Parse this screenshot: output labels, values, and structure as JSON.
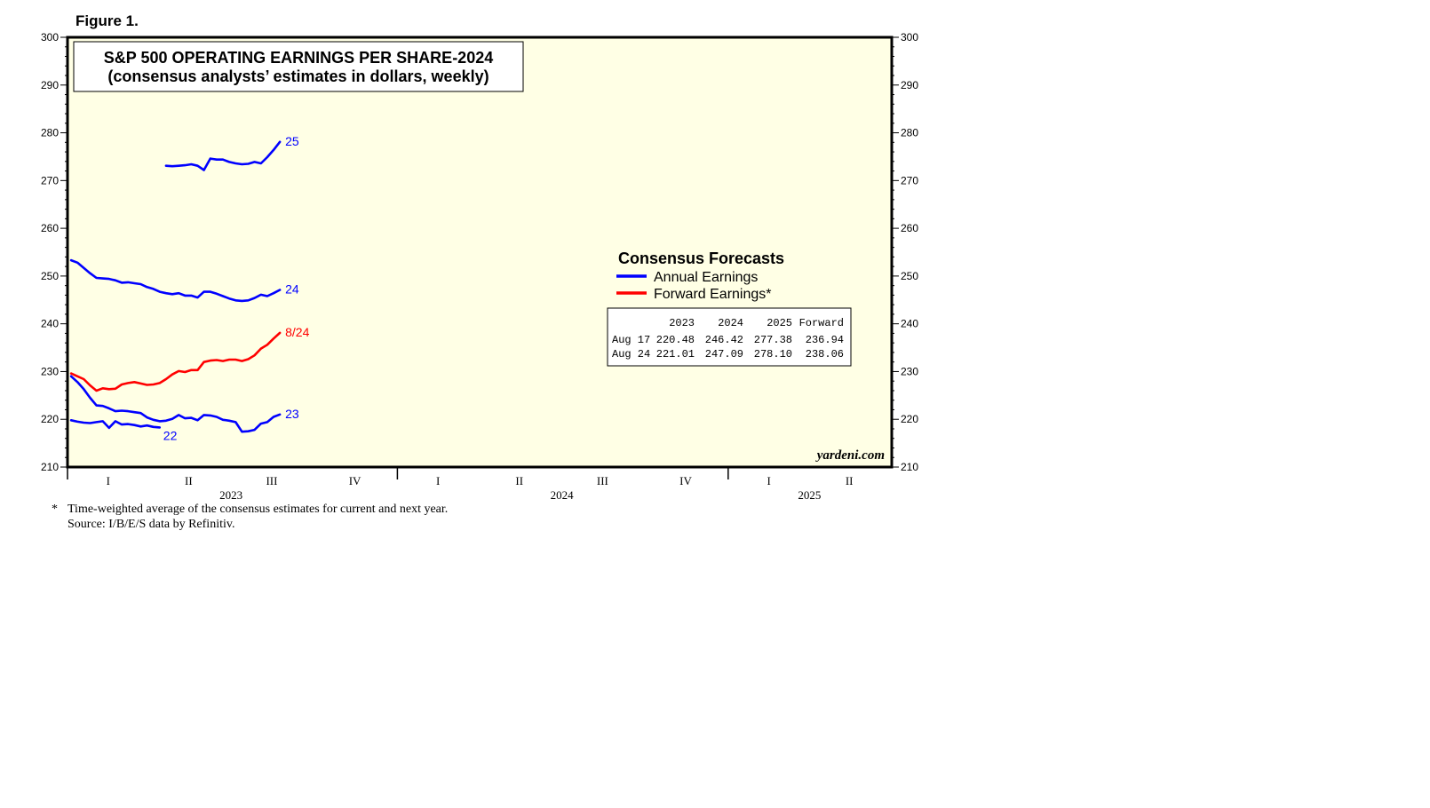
{
  "figure_label": "Figure 1.",
  "title_box": {
    "line1": "S&P 500 OPERATING EARNINGS PER SHARE-2024",
    "line2": "(consensus analysts’ estimates in dollars, weekly)"
  },
  "legend": {
    "heading": "Consensus Forecasts",
    "annual_label": "Annual Earnings",
    "forward_label": "Forward Earnings*"
  },
  "table": {
    "headers": [
      "2023",
      "2024",
      "2025",
      "Forward"
    ],
    "rows": [
      {
        "label": "Aug 17",
        "values": [
          "220.48",
          "246.42",
          "277.38",
          "236.94"
        ]
      },
      {
        "label": "Aug 24",
        "values": [
          "221.01",
          "247.09",
          "278.10",
          "238.06"
        ]
      }
    ]
  },
  "watermark": "yardeni.com",
  "footnote": {
    "star": "*",
    "line1": "Time-weighted average of the consensus estimates for current and next year.",
    "line2": "Source: I/B/E/S data by Refinitiv."
  },
  "colors": {
    "plot_background": "#ffffe5",
    "annual": "#0000ff",
    "forward": "#ff0000",
    "frame": "#000000"
  },
  "chart_data": {
    "type": "line",
    "title": "S&P 500 OPERATING EARNINGS PER SHARE-2024",
    "subtitle": "(consensus analysts’ estimates in dollars, weekly)",
    "ylim": [
      210,
      300
    ],
    "y_ticks": [
      "300",
      "290",
      "280",
      "270",
      "260",
      "250",
      "240",
      "230",
      "220",
      "210"
    ],
    "x_range": [
      "2023-01-01",
      "2025-07-01"
    ],
    "quarter_labels": [
      {
        "label": "I",
        "date": "2023-02-15"
      },
      {
        "label": "II",
        "date": "2023-05-15"
      },
      {
        "label": "III",
        "date": "2023-08-15"
      },
      {
        "label": "IV",
        "date": "2023-11-15"
      },
      {
        "label": "I",
        "date": "2024-02-15"
      },
      {
        "label": "II",
        "date": "2024-05-15"
      },
      {
        "label": "III",
        "date": "2024-08-15"
      },
      {
        "label": "IV",
        "date": "2024-11-15"
      },
      {
        "label": "I",
        "date": "2025-02-15"
      },
      {
        "label": "II",
        "date": "2025-05-15"
      }
    ],
    "year_labels": [
      {
        "label": "2023",
        "date": "2023-07-01"
      },
      {
        "label": "2024",
        "date": "2024-07-01"
      },
      {
        "label": "2025",
        "date": "2025-04-01"
      }
    ],
    "year_boundaries": [
      "2023-01-01",
      "2024-01-01",
      "2025-01-01"
    ],
    "series": [
      {
        "name": "22",
        "kind": "annual",
        "x": [
          "2023-01-05",
          "2023-01-12",
          "2023-01-19",
          "2023-01-26",
          "2023-02-02",
          "2023-02-09",
          "2023-02-16",
          "2023-02-23",
          "2023-03-02",
          "2023-03-09",
          "2023-03-16",
          "2023-03-23",
          "2023-03-30",
          "2023-04-06",
          "2023-04-13"
        ],
        "y": [
          219.8,
          219.5,
          219.3,
          219.2,
          219.4,
          219.6,
          218.2,
          219.6,
          218.9,
          219.0,
          218.8,
          218.5,
          218.7,
          218.4,
          218.3
        ]
      },
      {
        "name": "23",
        "kind": "annual",
        "x": [
          "2023-01-05",
          "2023-01-12",
          "2023-01-19",
          "2023-01-26",
          "2023-02-02",
          "2023-02-09",
          "2023-02-16",
          "2023-02-23",
          "2023-03-02",
          "2023-03-09",
          "2023-03-16",
          "2023-03-23",
          "2023-03-30",
          "2023-04-06",
          "2023-04-13",
          "2023-04-20",
          "2023-04-27",
          "2023-05-04",
          "2023-05-11",
          "2023-05-18",
          "2023-05-25",
          "2023-06-01",
          "2023-06-08",
          "2023-06-15",
          "2023-06-22",
          "2023-06-29",
          "2023-07-06",
          "2023-07-13",
          "2023-07-20",
          "2023-07-27",
          "2023-08-03",
          "2023-08-10",
          "2023-08-17",
          "2023-08-24"
        ],
        "y": [
          229.0,
          227.8,
          226.3,
          224.5,
          222.9,
          222.8,
          222.3,
          221.7,
          221.8,
          221.7,
          221.5,
          221.3,
          220.4,
          219.9,
          219.6,
          219.7,
          220.1,
          220.9,
          220.2,
          220.3,
          219.8,
          220.9,
          220.8,
          220.5,
          219.9,
          219.7,
          219.4,
          217.4,
          217.5,
          217.8,
          219.1,
          219.4,
          220.5,
          221.0
        ]
      },
      {
        "name": "24",
        "kind": "annual",
        "x": [
          "2023-01-05",
          "2023-01-12",
          "2023-01-19",
          "2023-01-26",
          "2023-02-02",
          "2023-02-09",
          "2023-02-16",
          "2023-02-23",
          "2023-03-02",
          "2023-03-09",
          "2023-03-16",
          "2023-03-23",
          "2023-03-30",
          "2023-04-06",
          "2023-04-13",
          "2023-04-20",
          "2023-04-27",
          "2023-05-04",
          "2023-05-11",
          "2023-05-18",
          "2023-05-25",
          "2023-06-01",
          "2023-06-08",
          "2023-06-15",
          "2023-06-22",
          "2023-06-29",
          "2023-07-06",
          "2023-07-13",
          "2023-07-20",
          "2023-07-27",
          "2023-08-03",
          "2023-08-10",
          "2023-08-17",
          "2023-08-24"
        ],
        "y": [
          253.3,
          252.8,
          251.7,
          250.6,
          249.6,
          249.5,
          249.4,
          249.1,
          248.6,
          248.7,
          248.5,
          248.3,
          247.7,
          247.3,
          246.7,
          246.4,
          246.2,
          246.4,
          245.9,
          245.9,
          245.5,
          246.7,
          246.7,
          246.3,
          245.8,
          245.3,
          244.9,
          244.8,
          244.9,
          245.4,
          246.1,
          245.8,
          246.4,
          247.1
        ]
      },
      {
        "name": "25",
        "kind": "annual",
        "x": [
          "2023-04-20",
          "2023-04-27",
          "2023-05-04",
          "2023-05-11",
          "2023-05-18",
          "2023-05-25",
          "2023-06-01",
          "2023-06-08",
          "2023-06-15",
          "2023-06-22",
          "2023-06-29",
          "2023-07-06",
          "2023-07-13",
          "2023-07-20",
          "2023-07-27",
          "2023-08-03",
          "2023-08-10",
          "2023-08-17",
          "2023-08-24"
        ],
        "y": [
          273.1,
          273.0,
          273.1,
          273.2,
          273.4,
          273.1,
          272.2,
          274.6,
          274.4,
          274.4,
          273.9,
          273.6,
          273.4,
          273.5,
          273.9,
          273.6,
          274.9,
          276.4,
          278.1
        ]
      },
      {
        "name": "8/24",
        "kind": "forward",
        "x": [
          "2023-01-05",
          "2023-01-12",
          "2023-01-19",
          "2023-01-26",
          "2023-02-02",
          "2023-02-09",
          "2023-02-16",
          "2023-02-23",
          "2023-03-02",
          "2023-03-09",
          "2023-03-16",
          "2023-03-23",
          "2023-03-30",
          "2023-04-06",
          "2023-04-13",
          "2023-04-20",
          "2023-04-27",
          "2023-05-04",
          "2023-05-11",
          "2023-05-18",
          "2023-05-25",
          "2023-06-01",
          "2023-06-08",
          "2023-06-15",
          "2023-06-22",
          "2023-06-29",
          "2023-07-06",
          "2023-07-13",
          "2023-07-20",
          "2023-07-27",
          "2023-08-03",
          "2023-08-10",
          "2023-08-17",
          "2023-08-24"
        ],
        "y": [
          229.6,
          229.0,
          228.4,
          227.1,
          226.0,
          226.5,
          226.3,
          226.4,
          227.3,
          227.6,
          227.8,
          227.5,
          227.2,
          227.3,
          227.6,
          228.4,
          229.4,
          230.1,
          229.9,
          230.3,
          230.3,
          232.0,
          232.3,
          232.4,
          232.2,
          232.5,
          232.5,
          232.2,
          232.6,
          233.4,
          234.8,
          235.6,
          236.9,
          238.1
        ]
      }
    ]
  }
}
